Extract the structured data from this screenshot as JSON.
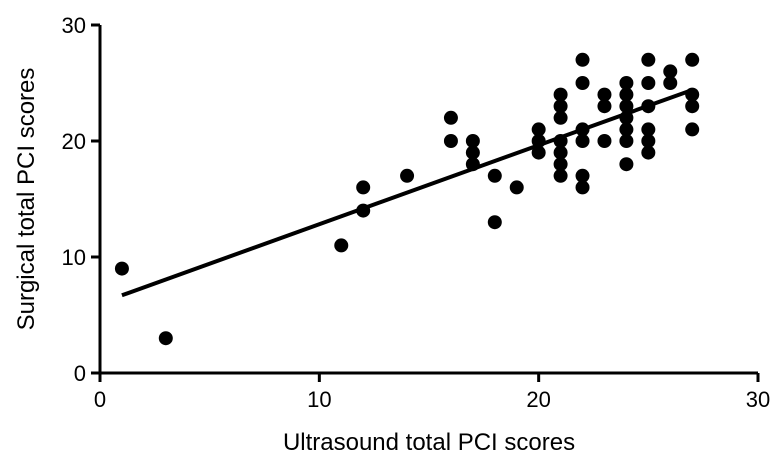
{
  "chart_data": {
    "type": "scatter",
    "title": "",
    "xlabel": "Ultrasound total PCI scores",
    "ylabel": "Surgical total PCI scores",
    "xlim": [
      0,
      30
    ],
    "ylim": [
      0,
      30
    ],
    "xticks": [
      0,
      10,
      20,
      30
    ],
    "yticks": [
      0,
      10,
      20,
      30
    ],
    "grid": false,
    "legend": "none",
    "point_color": "#000000",
    "points": [
      {
        "x": 1,
        "y": 9
      },
      {
        "x": 3,
        "y": 3
      },
      {
        "x": 11,
        "y": 11
      },
      {
        "x": 12,
        "y": 14
      },
      {
        "x": 12,
        "y": 16
      },
      {
        "x": 14,
        "y": 17
      },
      {
        "x": 16,
        "y": 20
      },
      {
        "x": 16,
        "y": 22
      },
      {
        "x": 17,
        "y": 18
      },
      {
        "x": 17,
        "y": 19
      },
      {
        "x": 17,
        "y": 20
      },
      {
        "x": 18,
        "y": 13
      },
      {
        "x": 18,
        "y": 17
      },
      {
        "x": 19,
        "y": 16
      },
      {
        "x": 20,
        "y": 19
      },
      {
        "x": 20,
        "y": 20
      },
      {
        "x": 20,
        "y": 21
      },
      {
        "x": 21,
        "y": 17
      },
      {
        "x": 21,
        "y": 18
      },
      {
        "x": 21,
        "y": 19
      },
      {
        "x": 21,
        "y": 20
      },
      {
        "x": 21,
        "y": 22
      },
      {
        "x": 21,
        "y": 23
      },
      {
        "x": 21,
        "y": 24
      },
      {
        "x": 22,
        "y": 16
      },
      {
        "x": 22,
        "y": 17
      },
      {
        "x": 22,
        "y": 20
      },
      {
        "x": 22,
        "y": 21
      },
      {
        "x": 22,
        "y": 25
      },
      {
        "x": 22,
        "y": 27
      },
      {
        "x": 23,
        "y": 20
      },
      {
        "x": 23,
        "y": 23
      },
      {
        "x": 23,
        "y": 24
      },
      {
        "x": 24,
        "y": 18
      },
      {
        "x": 24,
        "y": 20
      },
      {
        "x": 24,
        "y": 21
      },
      {
        "x": 24,
        "y": 22
      },
      {
        "x": 24,
        "y": 23
      },
      {
        "x": 24,
        "y": 24
      },
      {
        "x": 24,
        "y": 25
      },
      {
        "x": 25,
        "y": 19
      },
      {
        "x": 25,
        "y": 20
      },
      {
        "x": 25,
        "y": 21
      },
      {
        "x": 25,
        "y": 23
      },
      {
        "x": 25,
        "y": 25
      },
      {
        "x": 25,
        "y": 27
      },
      {
        "x": 26,
        "y": 25
      },
      {
        "x": 26,
        "y": 26
      },
      {
        "x": 27,
        "y": 21
      },
      {
        "x": 27,
        "y": 23
      },
      {
        "x": 27,
        "y": 24
      },
      {
        "x": 27,
        "y": 27
      }
    ],
    "regression_line": {
      "x": [
        1,
        27
      ],
      "y": [
        6.7,
        24.4
      ]
    }
  }
}
